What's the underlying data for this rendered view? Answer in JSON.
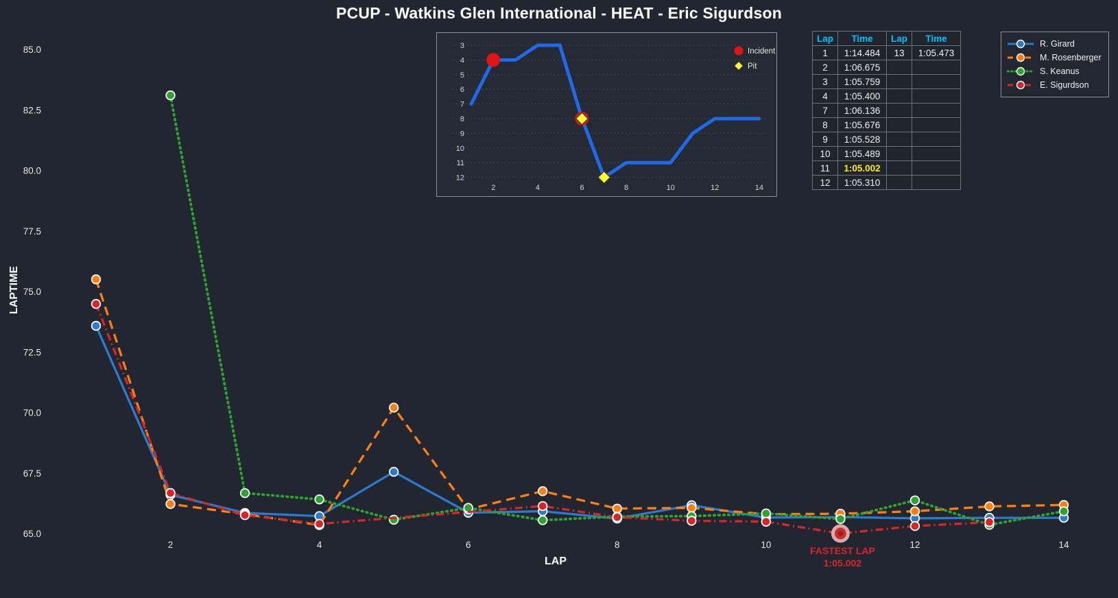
{
  "title": "PCUP - Watkins Glen International - HEAT - Eric Sigurdson",
  "colors": {
    "background": "#222631",
    "text": "#f0f0f0",
    "header_cyan": "#00c4ff",
    "highlight_yellow": "#ffee00",
    "incident_red": "#e11414",
    "pit_yellow": "#ffff2e",
    "inset_blue": "#1f6ae8",
    "annotation_red": "#d62728",
    "fastest_ring": "#dfb3b3"
  },
  "chart_data": [
    {
      "id": "laptime",
      "type": "line",
      "xlabel": "LAP",
      "ylabel": "LAPTIME",
      "x": [
        1,
        2,
        3,
        4,
        5,
        6,
        7,
        8,
        9,
        10,
        11,
        12,
        13,
        14
      ],
      "xticks": [
        2,
        4,
        6,
        8,
        10,
        12,
        14
      ],
      "yticks": [
        65.0,
        67.5,
        70.0,
        72.5,
        75.0,
        77.5,
        80.0,
        82.5,
        85.0
      ],
      "ylim": [
        64.7,
        85.8
      ],
      "grid": false,
      "legend_position": "top-right",
      "series": [
        {
          "name": "R. Girard",
          "color": "#2b7bce",
          "dash": "solid",
          "values": [
            73.58,
            66.6,
            65.85,
            65.72,
            67.55,
            65.86,
            65.92,
            65.62,
            66.17,
            65.66,
            65.68,
            65.63,
            65.65,
            65.65
          ]
        },
        {
          "name": "M. Rosenberger",
          "color": "#ff7f0e",
          "dash": "dashed",
          "values": [
            75.5,
            66.22,
            65.8,
            65.35,
            70.2,
            66.0,
            66.75,
            66.03,
            66.06,
            65.8,
            65.82,
            65.92,
            66.12,
            66.18
          ]
        },
        {
          "name": "S. Keanus",
          "color": "#2fa330",
          "dash": "dotted",
          "values": [
            null,
            83.1,
            66.67,
            66.41,
            65.57,
            66.06,
            65.55,
            65.7,
            65.72,
            65.83,
            65.6,
            66.37,
            65.36,
            65.92
          ]
        },
        {
          "name": "E. Sigurdson",
          "color": "#d62728",
          "dash": "dashdot",
          "values": [
            74.484,
            66.675,
            65.759,
            65.4,
            null,
            null,
            66.136,
            65.676,
            65.528,
            65.489,
            65.002,
            65.31,
            65.473,
            null
          ]
        }
      ],
      "annotation": {
        "lines": [
          "FASTEST LAP",
          "1:05.002"
        ],
        "lap": 11,
        "value": 65.002
      }
    },
    {
      "id": "position",
      "type": "line",
      "x": [
        1,
        2,
        3,
        4,
        5,
        6,
        7,
        8,
        9,
        10,
        11,
        12,
        13,
        14
      ],
      "values": [
        7,
        4,
        4,
        3,
        3,
        8,
        12,
        11,
        11,
        11,
        9,
        8,
        8,
        8
      ],
      "xticks": [
        2,
        4,
        6,
        8,
        10,
        12,
        14
      ],
      "yticks": [
        3,
        4,
        5,
        6,
        7,
        8,
        9,
        10,
        11,
        12
      ],
      "y_inverted": true,
      "grid": "horizontal-dotted",
      "legend": [
        {
          "label": "Incident",
          "marker": "red-circle"
        },
        {
          "label": "Pit",
          "marker": "yellow-diamond"
        }
      ],
      "incidents": [
        {
          "lap": 2,
          "pos": 4
        },
        {
          "lap": 6,
          "pos": 8
        }
      ],
      "pits": [
        {
          "lap": 6,
          "pos": 8
        },
        {
          "lap": 7,
          "pos": 12
        }
      ]
    }
  ],
  "table": {
    "headers": [
      "Lap",
      "Time",
      "Lap",
      "Time"
    ],
    "highlight_time": "1:05.002",
    "rows": [
      {
        "lap": "1",
        "time": "1:14.484",
        "lap2": "13",
        "time2": "1:05.473"
      },
      {
        "lap": "2",
        "time": "1:06.675",
        "lap2": "",
        "time2": ""
      },
      {
        "lap": "3",
        "time": "1:05.759",
        "lap2": "",
        "time2": ""
      },
      {
        "lap": "4",
        "time": "1:05.400",
        "lap2": "",
        "time2": ""
      },
      {
        "lap": "7",
        "time": "1:06.136",
        "lap2": "",
        "time2": ""
      },
      {
        "lap": "8",
        "time": "1:05.676",
        "lap2": "",
        "time2": ""
      },
      {
        "lap": "9",
        "time": "1:05.528",
        "lap2": "",
        "time2": ""
      },
      {
        "lap": "10",
        "time": "1:05.489",
        "lap2": "",
        "time2": ""
      },
      {
        "lap": "11",
        "time": "1:05.002",
        "lap2": "",
        "time2": ""
      },
      {
        "lap": "12",
        "time": "1:05.310",
        "lap2": "",
        "time2": ""
      }
    ]
  }
}
